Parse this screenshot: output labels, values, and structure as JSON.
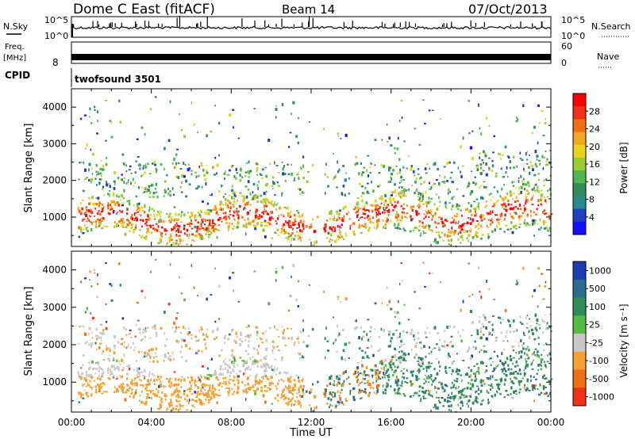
{
  "header": {
    "station": "Dome C East (fitACF)",
    "beam": "Beam 14",
    "date": "07/Oct/2013"
  },
  "noise_panel": {
    "left_label": "N.Sky",
    "right_label": "N.Search",
    "left_ticks": [
      "10^5",
      "10^0"
    ],
    "right_ticks": [
      "10^5",
      "10^0"
    ]
  },
  "freq_panel": {
    "left_label_1": "Freq.",
    "left_label_2": "[MHz]",
    "left_tick": "8",
    "right_label": "Nave",
    "right_ticks": [
      "60",
      "0"
    ]
  },
  "cpid_panel": {
    "label": "CPID",
    "value": "twofsound 3501"
  },
  "chart_data": [
    {
      "type": "heatmap",
      "title": "",
      "xlabel": "",
      "ylabel": "Slant Range [km]",
      "xlim": [
        "00:00",
        "24:00"
      ],
      "ylim": [
        200,
        4500
      ],
      "yticks": [
        "1000",
        "2000",
        "3000",
        "4000"
      ],
      "colorbar": {
        "label": "Power [dB]",
        "range": [
          0,
          32
        ],
        "ticks": [
          "4",
          "8",
          "12",
          "16",
          "20",
          "24",
          "28"
        ],
        "colors": [
          "#1010ff",
          "#2040c0",
          "#2a8a8a",
          "#2e8b57",
          "#4db84d",
          "#99cc33",
          "#e6d21a",
          "#f5a623",
          "#f07010",
          "#f03018",
          "#ff0000"
        ]
      },
      "description_bands": [
        {
          "t_start": 0.5,
          "t_end": 11.0,
          "range_low": 500,
          "range_high": 1500,
          "dominant": "28+"
        },
        {
          "t_start": 13.0,
          "t_end": 16.5,
          "range_low": 600,
          "range_high": 1700,
          "dominant": "24-28"
        },
        {
          "t_start": 16.5,
          "t_end": 24.0,
          "range_low": 500,
          "range_high": 1800,
          "dominant": "20-28"
        }
      ]
    },
    {
      "type": "heatmap",
      "title": "",
      "xlabel": "Time UT",
      "ylabel": "Slant Range [km]",
      "xlim": [
        "00:00",
        "24:00"
      ],
      "ylim": [
        200,
        4500
      ],
      "yticks": [
        "1000",
        "2000",
        "3000",
        "4000"
      ],
      "xticks": [
        "00:00",
        "04:00",
        "08:00",
        "12:00",
        "16:00",
        "20:00",
        "00:00"
      ],
      "colorbar": {
        "label": "Velocity [m s⁻¹]",
        "ticks": [
          "1000",
          "500",
          "100",
          "25",
          "-25",
          "-100",
          "-500",
          "-1000"
        ],
        "colors": [
          "#1c3cb0",
          "#2e6b8f",
          "#2e8b57",
          "#55bb44",
          "#c8c8c8",
          "#f5a030",
          "#f07010",
          "#f03018"
        ]
      },
      "description_bands": [
        {
          "t_start": 0.5,
          "t_end": 11.0,
          "range_low": 500,
          "range_high": 1100,
          "dominant": "-100"
        },
        {
          "t_start": 0.5,
          "t_end": 11.0,
          "range_low": 1100,
          "range_high": 1500,
          "dominant": "25 to -25"
        },
        {
          "t_start": 15.5,
          "t_end": 24.0,
          "range_low": 500,
          "range_high": 1800,
          "dominant": "100"
        }
      ]
    }
  ]
}
